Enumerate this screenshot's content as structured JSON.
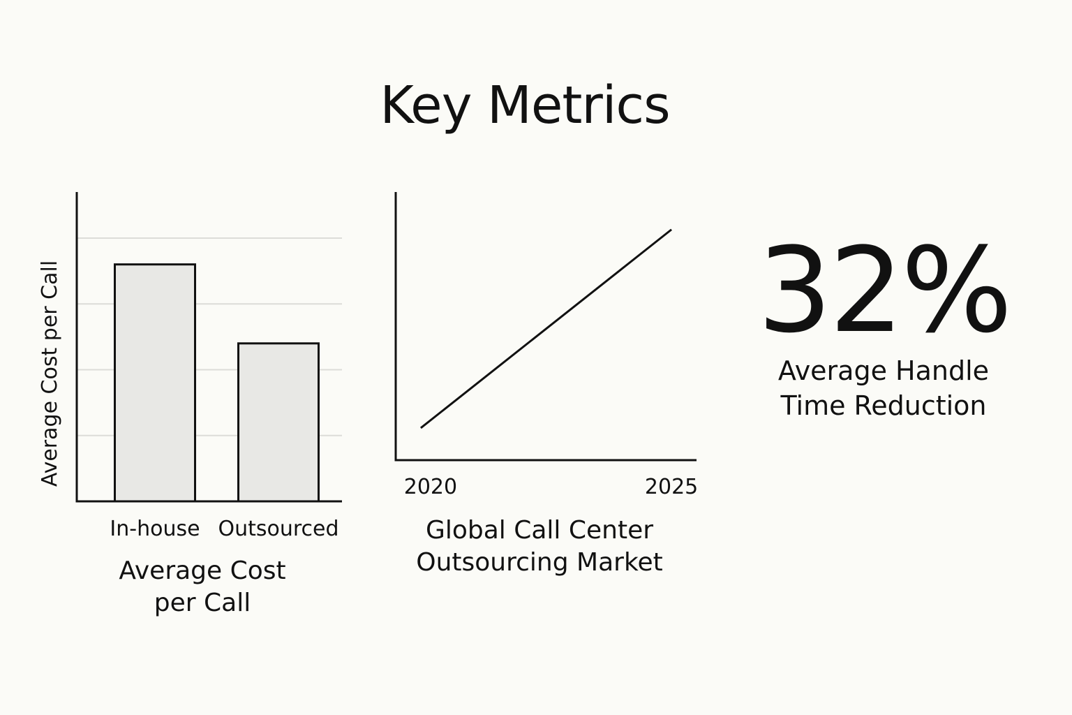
{
  "page": {
    "title": "Key Metrics"
  },
  "chart_data": [
    {
      "type": "bar",
      "title": "Average Cost\nper Call",
      "caption_lines": [
        "Average Cost",
        "per Call"
      ],
      "categories": [
        "In-house",
        "Outsourced"
      ],
      "values": [
        3.6,
        2.4
      ],
      "ylabel": "Average Cost per Call",
      "xlabel": "",
      "ylim": [
        0,
        4.7
      ],
      "grid": true,
      "bar_color": "#e8e8e5",
      "edge_color": "#111111"
    },
    {
      "type": "line",
      "title": "Global Call Center\nOutsourcing Market",
      "caption_lines": [
        "Global Call Center",
        "Outsourcing Market"
      ],
      "x": [
        2020,
        2025
      ],
      "y": [
        1.2,
        8.6
      ],
      "xticks": [
        "2020",
        "2025"
      ],
      "xlim": [
        2019.5,
        2025.5
      ],
      "ylim": [
        0,
        10
      ],
      "grid": false,
      "line_color": "#111111"
    }
  ],
  "kpi": {
    "value": "32%",
    "label_lines": [
      "Average Handle",
      "Time Reduction"
    ]
  }
}
